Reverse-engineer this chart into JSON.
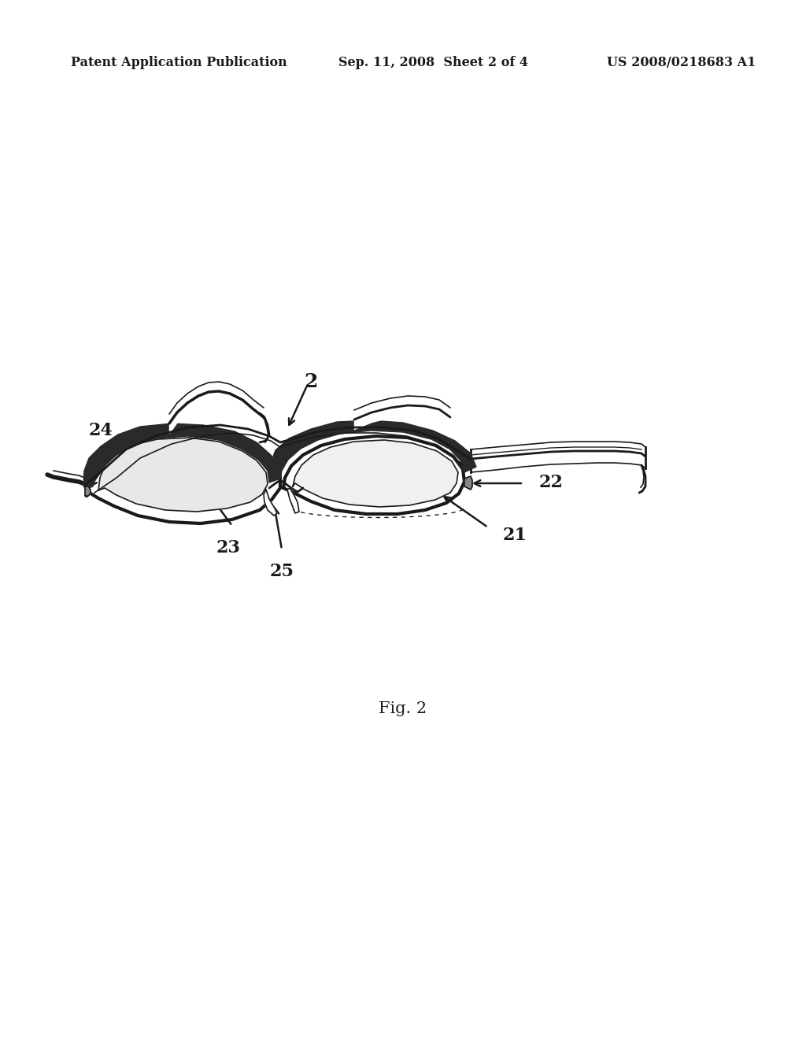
{
  "background_color": "#ffffff",
  "header_left": "Patent Application Publication",
  "header_center": "Sep. 11, 2008  Sheet 2 of 4",
  "header_right": "US 2008/0218683 A1",
  "header_fontsize": 11.5,
  "fig_label": "Fig. 2",
  "fig_label_fontsize": 15,
  "line_color": "#1a1a1a",
  "text_color": "#1a1a1a",
  "label_fontsize": 16,
  "lw_thin": 1.2,
  "lw_med": 2.0,
  "lw_thick": 3.0
}
